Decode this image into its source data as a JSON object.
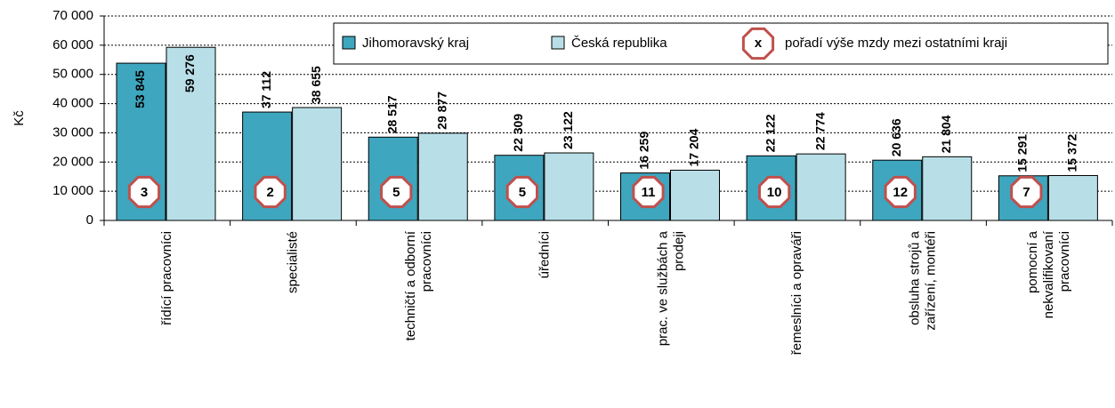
{
  "chart_data": {
    "type": "bar",
    "y_label": "Kč",
    "categories": [
      "řídící pracovníci",
      "specialisté",
      "techničtí a odborní\npracovníci",
      "úředníci",
      "prac. ve službách a\nprodeji",
      "řemeslníci a opraváři",
      "obsluha strojů a\nzařízení, montéři",
      "pomocní a\nnekvalifikovaní\npracovníci"
    ],
    "series": [
      {
        "name": "Jihomoravský kraj",
        "color": "#3ea6be",
        "values": [
          53845,
          37112,
          28517,
          22309,
          16259,
          22122,
          20636,
          15291
        ],
        "value_labels": [
          "53 845",
          "37 112",
          "28 517",
          "22 309",
          "16 259",
          "22 122",
          "20 636",
          "15 291"
        ]
      },
      {
        "name": "Česká republika",
        "color": "#b8dfe8",
        "values": [
          59276,
          38655,
          29877,
          23122,
          17204,
          22774,
          21804,
          15372
        ],
        "value_labels": [
          "59 276",
          "38 655",
          "29 877",
          "23 122",
          "17 204",
          "22 774",
          "21 804",
          "15 372"
        ]
      }
    ],
    "ranks": [
      3,
      2,
      5,
      5,
      11,
      10,
      12,
      7
    ],
    "rank_legend": {
      "symbol": "x",
      "label": "pořadí výše mzdy mezi ostatními kraji"
    },
    "ylim": [
      0,
      70000
    ],
    "yticks": [
      0,
      {
        "value": 10000,
        "label": "10 000"
      },
      {
        "value": 20000,
        "label": "20 000"
      },
      {
        "value": 30000,
        "label": "30 000"
      },
      {
        "value": 40000,
        "label": "40 000"
      },
      {
        "value": 50000,
        "label": "50 000"
      },
      {
        "value": 60000,
        "label": "60 000"
      },
      {
        "value": 70000,
        "label": "70 000"
      }
    ],
    "grid": true
  }
}
